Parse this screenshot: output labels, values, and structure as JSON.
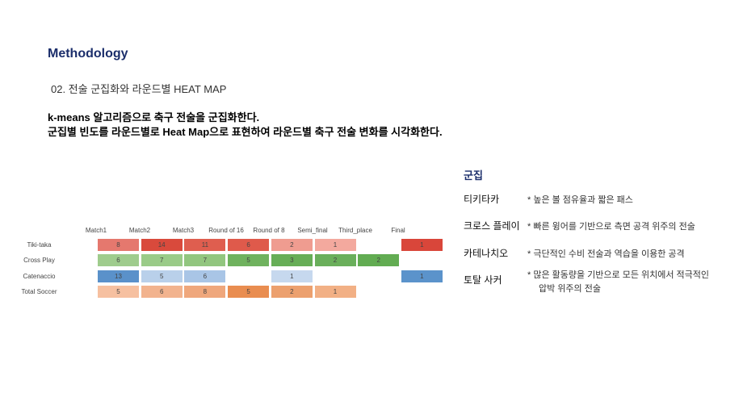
{
  "slide": {
    "title": "Methodology",
    "subtitle": "02. 전술 군집화와 라운드별 HEAT MAP",
    "desc_line1": "k-means 알고리즘으로 축구 전술을 군집화한다.",
    "desc_line2": "군집별 빈도를 라운드별로 Heat Map으로 표현하여 라운드별 축구 전술 변화를 시각화한다."
  },
  "chart_data": {
    "type": "heatmap",
    "columns": [
      "Match1",
      "Match2",
      "Match3",
      "Round of 16",
      "Round of 8",
      "Semi_final",
      "Third_place",
      "Final"
    ],
    "rows": [
      "Tiki-taka",
      "Cross Play",
      "Catenaccio",
      "Total Soccer"
    ],
    "values": [
      [
        8,
        14,
        11,
        6,
        2,
        1,
        null,
        1
      ],
      [
        6,
        7,
        7,
        5,
        3,
        2,
        2,
        null
      ],
      [
        13,
        5,
        6,
        null,
        1,
        null,
        null,
        1
      ],
      [
        5,
        6,
        8,
        5,
        2,
        1,
        null,
        null
      ]
    ],
    "colors": {
      "Tiki-taka": [
        "#e5786e",
        "#d94a3c",
        "#df5e4f",
        "#df5a4b",
        "#ef9c90",
        "#f3a99e",
        null,
        "#d9463a"
      ],
      "Cross Play": [
        "#9fcc8d",
        "#9acb88",
        "#92c67f",
        "#6fb25e",
        "#67ae57",
        "#6aaf5b",
        "#62ac52",
        null
      ],
      "Catenaccio": [
        "#5a91ca",
        "#b9d0ea",
        "#a9c5e6",
        null,
        "#c6d8ee",
        null,
        null,
        "#5b93cb"
      ],
      "Total Soccer": [
        "#f6c0a0",
        "#f2b38e",
        "#efa77c",
        "#e98d50",
        "#eca06e",
        "#f2b085",
        null,
        null
      ]
    }
  },
  "legend": {
    "title": "군집",
    "items": [
      {
        "name": "티키타카",
        "desc": "* 높은 볼 점유율과 짧은 패스"
      },
      {
        "name": "크로스 플레이",
        "desc": "* 빠른 윙어를 기반으로 측면 공격 위주의 전술"
      },
      {
        "name": "카테나치오",
        "desc": "* 극단적인 수비 전술과 역습을 이용한 공격"
      },
      {
        "name": "토탈 사커",
        "desc": "*  많은 활동량을 기반으로 모든 위치에서 적극적인",
        "desc2": "압박 위주의 전술"
      }
    ]
  }
}
